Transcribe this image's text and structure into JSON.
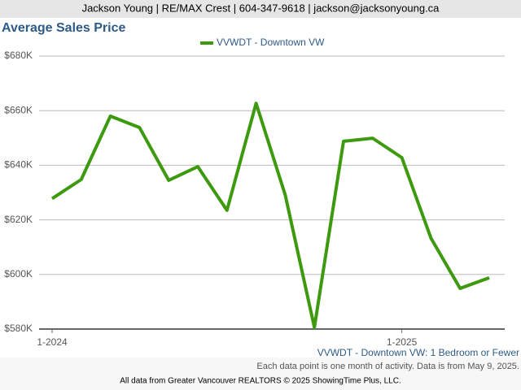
{
  "header": "Jackson Young | RE/MAX Crest | 604-347-9618 | jackson@jacksonyoung.ca",
  "chart_data": {
    "type": "line",
    "title": "Average Sales Price",
    "categories": [
      "1-2024",
      null,
      null,
      null,
      null,
      null,
      null,
      null,
      null,
      null,
      null,
      null,
      "1-2025",
      null,
      null,
      null
    ],
    "series": [
      {
        "name": "VVWDT - Downtown VW",
        "color": "#3d9a0f",
        "values": [
          627800,
          634800,
          658000,
          653800,
          634500,
          639500,
          623500,
          662700,
          629100,
          580600,
          648800,
          649900,
          642800,
          613300,
          594900,
          598800
        ]
      }
    ],
    "ylim": [
      580000,
      680000
    ],
    "yticks": [
      {
        "value": 580000,
        "label": "$580K"
      },
      {
        "value": 600000,
        "label": "$600K"
      },
      {
        "value": 620000,
        "label": "$620K"
      },
      {
        "value": 640000,
        "label": "$640K"
      },
      {
        "value": 660000,
        "label": "$660K"
      },
      {
        "value": 680000,
        "label": "$680K"
      }
    ],
    "grid": true,
    "subtitle": "VVWDT - Downtown VW: 1 Bedroom or Fewer",
    "note": "Each data point is one month of activity. Data is from May 9, 2025.",
    "footer": "All data from Greater Vancouver REALTORS © 2025 ShowingTime Plus, LLC."
  }
}
